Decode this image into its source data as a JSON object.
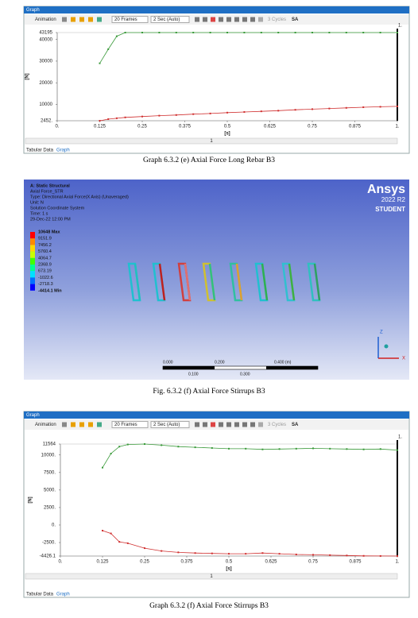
{
  "graphs": [
    {
      "title_bar": "Graph",
      "toolbar": {
        "animation": "Animation",
        "frames": "20 Frames",
        "duration": "2 Sec (Auto)",
        "cycles": "3 Cycles",
        "sa": "SA"
      },
      "chart": {
        "type": "line",
        "x": [
          0.125,
          0.15,
          0.175,
          0.2,
          0.25,
          0.3,
          0.35,
          0.4,
          0.45,
          0.5,
          0.55,
          0.6,
          0.65,
          0.7,
          0.75,
          0.8,
          0.85,
          0.9,
          0.95,
          1.0
        ],
        "series": [
          {
            "color": "#3a9a3a",
            "values": [
              29000,
              35500,
              41500,
              43195,
              43195,
              43195,
              43195,
              43195,
              43195,
              43195,
              43195,
              43195,
              43195,
              43195,
              43195,
              43195,
              43195,
              43195,
              43195,
              43195
            ]
          },
          {
            "color": "#d03030",
            "values": [
              2452,
              3200,
              3600,
              4000,
              4400,
              4800,
              5100,
              5500,
              5800,
              6200,
              6500,
              6800,
              7100,
              7500,
              7800,
              8100,
              8400,
              8700,
              8900,
              9100
            ]
          }
        ],
        "xlim": [
          0,
          1
        ],
        "ylim": [
          2452,
          43195
        ],
        "xticks": [
          {
            "value": 0,
            "label": "0."
          },
          0.125,
          0.25,
          0.375,
          0.5,
          0.625,
          0.75,
          0.875,
          {
            "value": 1,
            "label": "1."
          }
        ],
        "yticks": [
          {
            "value": 2452,
            "label": "2452."
          },
          10000,
          20000,
          30000,
          40000,
          43195
        ],
        "ylabel": "[N]",
        "xlabel": "[s]",
        "cursor": {
          "value": 1,
          "label": "1."
        }
      },
      "slider": "1",
      "tabs": [
        "Tabular Data",
        "Graph"
      ],
      "caption": "Graph 6.3.2 (e) Axial Force Long Rebar B3"
    },
    {
      "title_bar": "Graph",
      "toolbar": {
        "animation": "Animation",
        "frames": "20 Frames",
        "duration": "2 Sec (Auto)",
        "cycles": "3 Cycles",
        "sa": "SA"
      },
      "chart": {
        "type": "line",
        "x": [
          0.125,
          0.15,
          0.175,
          0.2,
          0.25,
          0.3,
          0.35,
          0.4,
          0.45,
          0.5,
          0.55,
          0.6,
          0.65,
          0.7,
          0.75,
          0.8,
          0.85,
          0.9,
          0.95,
          1.0
        ],
        "series": [
          {
            "color": "#3a9a3a",
            "values": [
              8200,
              10200,
              11200,
              11500,
              11564,
              11400,
              11200,
              11100,
              11000,
              10900,
              10900,
              10800,
              10850,
              10900,
              10950,
              10900,
              10850,
              10800,
              10850,
              10700
            ]
          },
          {
            "color": "#d03030",
            "values": [
              -800,
              -1200,
              -2400,
              -2600,
              -3300,
              -3700,
              -3900,
              -4000,
              -4050,
              -4100,
              -4100,
              -4000,
              -4100,
              -4200,
              -4250,
              -4300,
              -4350,
              -4400,
              -4420,
              -4426.1
            ]
          }
        ],
        "xlim": [
          0,
          1
        ],
        "ylim": [
          -4426.1,
          11564
        ],
        "xticks": [
          {
            "value": 0,
            "label": "0."
          },
          0.125,
          0.25,
          0.375,
          0.5,
          0.625,
          0.75,
          0.875,
          {
            "value": 1,
            "label": "1."
          }
        ],
        "yticks": [
          -4426.1,
          {
            "value": -2500,
            "label": "-2500."
          },
          {
            "value": 0,
            "label": "0."
          },
          {
            "value": 2500,
            "label": "2500."
          },
          {
            "value": 5000,
            "label": "5000."
          },
          {
            "value": 7500,
            "label": "7500."
          },
          {
            "value": 10000,
            "label": "10000."
          },
          11564
        ],
        "ylabel": "[N]",
        "xlabel": "[s]",
        "cursor": {
          "value": 1,
          "label": "1."
        }
      },
      "slider": "1",
      "tabs": [
        "Tabular Data",
        "Graph"
      ],
      "caption": "Graph 6.3.2 (f) Axial Force Stirrups B3"
    }
  ],
  "figure": {
    "info": [
      "A: Static Structural",
      "Axial Force_STR",
      "Type: Directional Axial Force(X Axis) (Unaveraged)",
      "Unit: N",
      "Solution Coordinate System",
      "Time: 1 s",
      "29-Dec-22 12:00 PM"
    ],
    "legend": [
      "10648 Max",
      "9151.9",
      "7456.2",
      "5760.4",
      "4064.7",
      "2368.9",
      "673.19",
      "-1022.6",
      "-2718.3",
      "-4414.1 Min"
    ],
    "legend_colors": [
      "#ff0000",
      "#ff8a00",
      "#ffd800",
      "#c8ff00",
      "#40ff00",
      "#00ff90",
      "#00e0ff",
      "#0070ff",
      "#0000ff"
    ],
    "logo": [
      "Ansys",
      "2022 R2",
      "STUDENT"
    ],
    "scale_top": [
      "0.000",
      "0.200",
      "0.400 (m)"
    ],
    "scale_bottom": [
      "0.100",
      "0.300"
    ],
    "axes": [
      "Z",
      "X"
    ],
    "caption": "Fig. 6.3.2 (f) Axial Force Stirrups B3"
  }
}
